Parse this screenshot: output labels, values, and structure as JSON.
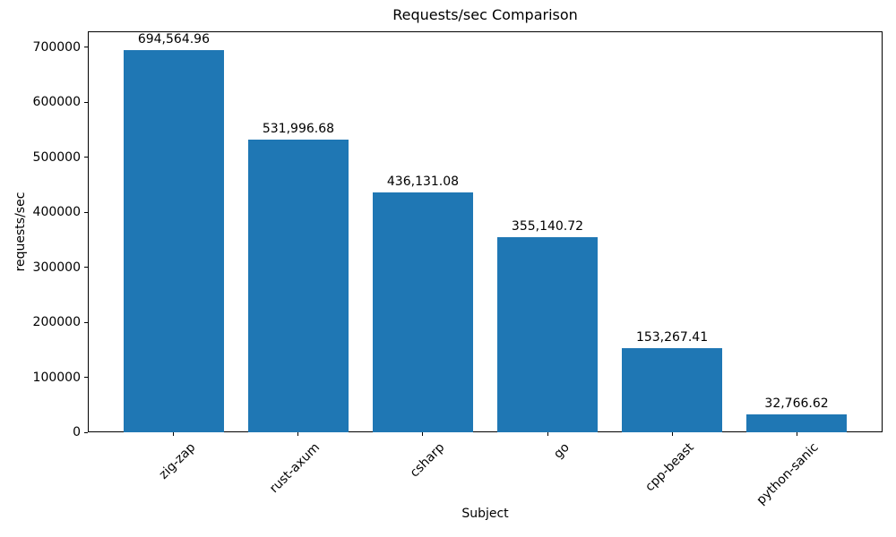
{
  "chart_data": {
    "type": "bar",
    "title": "Requests/sec Comparison",
    "xlabel": "Subject",
    "ylabel": "requests/sec",
    "categories": [
      "zig-zap",
      "rust-axum",
      "csharp",
      "go",
      "cpp-beast",
      "python-sanic"
    ],
    "values": [
      694564.96,
      531996.68,
      436131.08,
      355140.72,
      153267.41,
      32766.62
    ],
    "value_labels": [
      "694,564.96",
      "531,996.68",
      "436,131.08",
      "355,140.72",
      "153,267.41",
      "32,766.62"
    ],
    "yticks": [
      0,
      100000,
      200000,
      300000,
      400000,
      500000,
      600000,
      700000
    ],
    "ytick_labels": [
      "0",
      "100000",
      "200000",
      "300000",
      "400000",
      "500000",
      "600000",
      "700000"
    ],
    "ylim": [
      0,
      729293
    ],
    "bar_color": "#1f77b4",
    "grid": false,
    "legend": "none",
    "bar_width_fraction": 0.8,
    "x_tick_rotation_deg": 45
  }
}
